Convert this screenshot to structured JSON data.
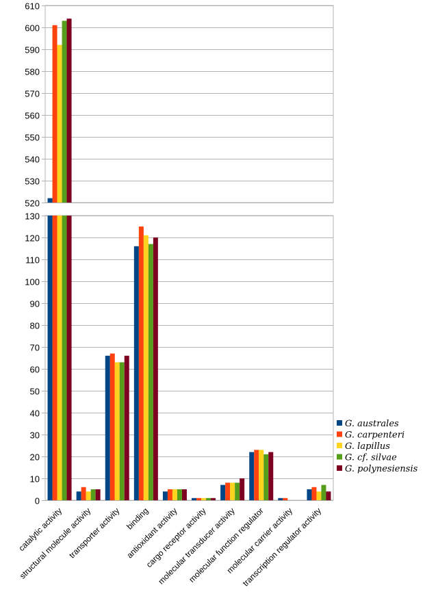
{
  "chart_data": {
    "type": "bar",
    "title": "",
    "xlabel": "",
    "ylabel": "",
    "grid": true,
    "legend_position": "right",
    "broken_axis": true,
    "y_segments": [
      {
        "name": "upper",
        "ylim": [
          520,
          610
        ],
        "ticks": [
          520,
          530,
          540,
          550,
          560,
          570,
          580,
          590,
          600,
          610
        ]
      },
      {
        "name": "lower",
        "ylim": [
          0,
          130
        ],
        "ticks": [
          0,
          10,
          20,
          30,
          40,
          50,
          60,
          70,
          80,
          90,
          100,
          110,
          120,
          130
        ]
      }
    ],
    "categories": [
      "catalytic activity",
      "structural molecule activity",
      "transporter activity",
      "binding",
      "antioxidant activity",
      "cargo receptor activity",
      "molecular transducer activity",
      "molecular function regulator",
      "molecular carrier activity",
      "transcription regulator activity"
    ],
    "series": [
      {
        "name": "G. australes",
        "color": "#004586",
        "values": [
          522,
          4,
          66,
          116,
          4,
          1,
          7,
          22,
          1,
          5
        ]
      },
      {
        "name": "G. carpenteri",
        "color": "#ff420e",
        "values": [
          601,
          6,
          67,
          125,
          5,
          1,
          8,
          23,
          1,
          6
        ]
      },
      {
        "name": "G. lapillus",
        "color": "#ffd320",
        "values": [
          592,
          4,
          63,
          121,
          5,
          1,
          8,
          23,
          0,
          4
        ]
      },
      {
        "name": "G. cf. silvae",
        "color": "#579d1c",
        "values": [
          603,
          5,
          63,
          117,
          5,
          1,
          8,
          21,
          0,
          7
        ]
      },
      {
        "name": "G. polynesiensis",
        "color": "#7e0021",
        "values": [
          604,
          5,
          66,
          120,
          5,
          1,
          10,
          22,
          0,
          4
        ]
      }
    ]
  }
}
